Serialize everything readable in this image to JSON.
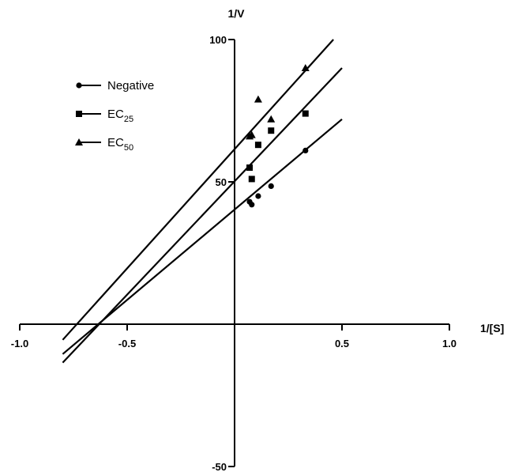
{
  "chart_data": {
    "type": "scatter",
    "title": "",
    "xlabel": "1/[S]",
    "ylabel": "1/V",
    "xlim": [
      -1.0,
      1.0
    ],
    "ylim": [
      -50,
      100
    ],
    "x_ticks": [
      "-1.0",
      "-0.5",
      "0.5",
      "1.0"
    ],
    "y_ticks": [
      "100",
      "50",
      "-50"
    ],
    "legend_position": "top-left",
    "grid": false,
    "series": [
      {
        "name": "Negative",
        "legend_main": "Negative",
        "legend_sub": "",
        "marker": "circle",
        "points": [
          [
            0.07,
            43
          ],
          [
            0.08,
            42
          ],
          [
            0.11,
            45
          ],
          [
            0.17,
            48.5
          ],
          [
            0.33,
            61
          ]
        ],
        "fit": {
          "x": [
            -0.8,
            0.5
          ],
          "y": [
            -10.5,
            72
          ]
        }
      },
      {
        "name": "EC25",
        "legend_main": "EC",
        "legend_sub": "25",
        "marker": "square",
        "points": [
          [
            0.07,
            55
          ],
          [
            0.08,
            51
          ],
          [
            0.11,
            63
          ],
          [
            0.17,
            68
          ],
          [
            0.33,
            74
          ]
        ],
        "fit": {
          "x": [
            -0.8,
            0.5
          ],
          "y": [
            -13.5,
            90
          ]
        }
      },
      {
        "name": "EC50",
        "legend_main": "EC",
        "legend_sub": "50",
        "marker": "triangle",
        "points": [
          [
            0.07,
            66
          ],
          [
            0.08,
            66.5
          ],
          [
            0.11,
            79
          ],
          [
            0.17,
            72
          ],
          [
            0.33,
            90
          ]
        ],
        "fit": {
          "x": [
            -0.8,
            0.46
          ],
          "y": [
            -5.5,
            100
          ]
        }
      }
    ]
  }
}
